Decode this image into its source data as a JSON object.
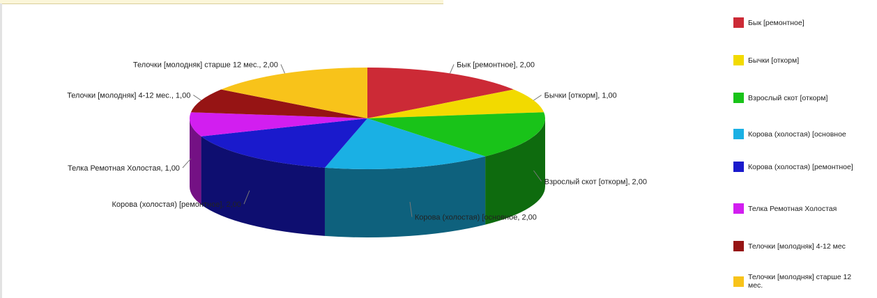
{
  "chart_data": {
    "type": "pie",
    "style": "3d",
    "series": [
      {
        "name": "Бык [ремонтное]",
        "value": 2.0,
        "color": "#cc2a36",
        "label": "Бык [ремонтное], 2,00"
      },
      {
        "name": "Бычки [откорм]",
        "value": 1.0,
        "color": "#f2da00",
        "label": "Бычки [откорм], 1,00"
      },
      {
        "name": "Взрослый скот [откорм]",
        "value": 2.0,
        "color": "#19c319",
        "label": "Взрослый скот [откорм], 2,00"
      },
      {
        "name": "Корова (холостая) [основное",
        "value": 2.0,
        "color": "#1ab0e4",
        "label": "Корова (холостая) [основное, 2,00"
      },
      {
        "name": "Корова (холостая) [ремонтное]",
        "value": 2.0,
        "color": "#1a1acc",
        "label": "Корова (холостая) [ремонтное], 2,00"
      },
      {
        "name": "Телка Ремотная Холостая",
        "value": 1.0,
        "color": "#d21ef0",
        "label": "Телка Ремотная Холостая, 1,00"
      },
      {
        "name": "Телочки [молодняк] 4-12 мес",
        "value": 1.0,
        "color": "#961414",
        "label": "Телочки [молодняк] 4-12 мес., 1,00"
      },
      {
        "name": "Телочки [молодняк] старше 12 мес.",
        "value": 2.0,
        "color": "#f8c31a",
        "label": "Телочки [молодняк] старше 12 мес., 2,00"
      }
    ],
    "legend_position": "right"
  }
}
